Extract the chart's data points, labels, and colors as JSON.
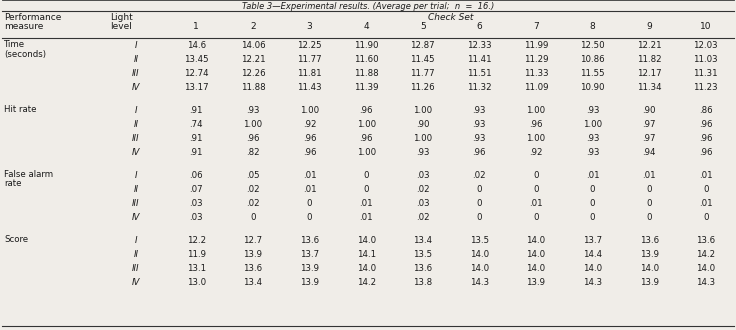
{
  "title": "Table 3—Experimental results. (Average per trial;  n  =  16.)",
  "check_set_label": "Check Set",
  "col_numbers": [
    "1",
    "2",
    "3",
    "4",
    "5",
    "6",
    "7",
    "8",
    "9",
    "10"
  ],
  "sections": [
    {
      "measure": [
        "Time",
        "(seconds)"
      ],
      "levels": [
        "I",
        "II",
        "III",
        "IV"
      ],
      "data": [
        [
          "14.6",
          "14.06",
          "12.25",
          "11.90",
          "12.87",
          "12.33",
          "11.99",
          "12.50",
          "12.21",
          "12.03"
        ],
        [
          "13.45",
          "12.21",
          "11.77",
          "11.60",
          "11.45",
          "11.41",
          "11.29",
          "10.86",
          "11.82",
          "11.03"
        ],
        [
          "12.74",
          "12.26",
          "11.81",
          "11.88",
          "11.77",
          "11.51",
          "11.33",
          "11.55",
          "12.17",
          "11.31"
        ],
        [
          "13.17",
          "11.88",
          "11.43",
          "11.39",
          "11.26",
          "11.32",
          "11.09",
          "10.90",
          "11.34",
          "11.23"
        ]
      ]
    },
    {
      "measure": [
        "Hit rate"
      ],
      "levels": [
        "I",
        "II",
        "III",
        "IV"
      ],
      "data": [
        [
          ".91",
          ".93",
          "1.00",
          ".96",
          "1.00",
          ".93",
          "1.00",
          ".93",
          ".90",
          ".86"
        ],
        [
          ".74",
          "1.00",
          ".92",
          "1.00",
          ".90",
          ".93",
          ".96",
          "1.00",
          ".97",
          ".96"
        ],
        [
          ".91",
          ".96",
          ".96",
          ".96",
          "1.00",
          ".93",
          "1.00",
          ".93",
          ".97",
          ".96"
        ],
        [
          ".91",
          ".82",
          ".96",
          "1.00",
          ".93",
          ".96",
          ".92",
          ".93",
          ".94",
          ".96"
        ]
      ]
    },
    {
      "measure": [
        "False alarm",
        "rate"
      ],
      "levels": [
        "I",
        "II",
        "III",
        "IV"
      ],
      "data": [
        [
          ".06",
          ".05",
          ".01",
          "0",
          ".03",
          ".02",
          "0",
          ".01",
          ".01",
          ".01"
        ],
        [
          ".07",
          ".02",
          ".01",
          "0",
          ".02",
          "0",
          "0",
          "0",
          "0",
          "0"
        ],
        [
          ".03",
          ".02",
          "0",
          ".01",
          ".03",
          "0",
          ".01",
          "0",
          "0",
          ".01"
        ],
        [
          ".03",
          "0",
          "0",
          ".01",
          ".02",
          "0",
          "0",
          "0",
          "0",
          "0"
        ]
      ]
    },
    {
      "measure": [
        "Score"
      ],
      "levels": [
        "I",
        "II",
        "III",
        "IV"
      ],
      "data": [
        [
          "12.2",
          "12.7",
          "13.6",
          "14.0",
          "13.4",
          "13.5",
          "14.0",
          "13.7",
          "13.6",
          "13.6"
        ],
        [
          "11.9",
          "13.9",
          "13.7",
          "14.1",
          "13.5",
          "14.0",
          "14.0",
          "14.4",
          "13.9",
          "14.2"
        ],
        [
          "13.1",
          "13.6",
          "13.9",
          "14.0",
          "13.6",
          "14.0",
          "14.0",
          "14.0",
          "14.0",
          "14.0"
        ],
        [
          "13.0",
          "13.4",
          "13.9",
          "14.2",
          "13.8",
          "14.3",
          "13.9",
          "14.3",
          "13.9",
          "14.3"
        ]
      ]
    }
  ],
  "bg_color": "#f0ede8",
  "text_color": "#1a1a1a",
  "line_color": "#333333",
  "title_fontsize": 6.0,
  "header_fontsize": 6.5,
  "data_fontsize": 6.2
}
